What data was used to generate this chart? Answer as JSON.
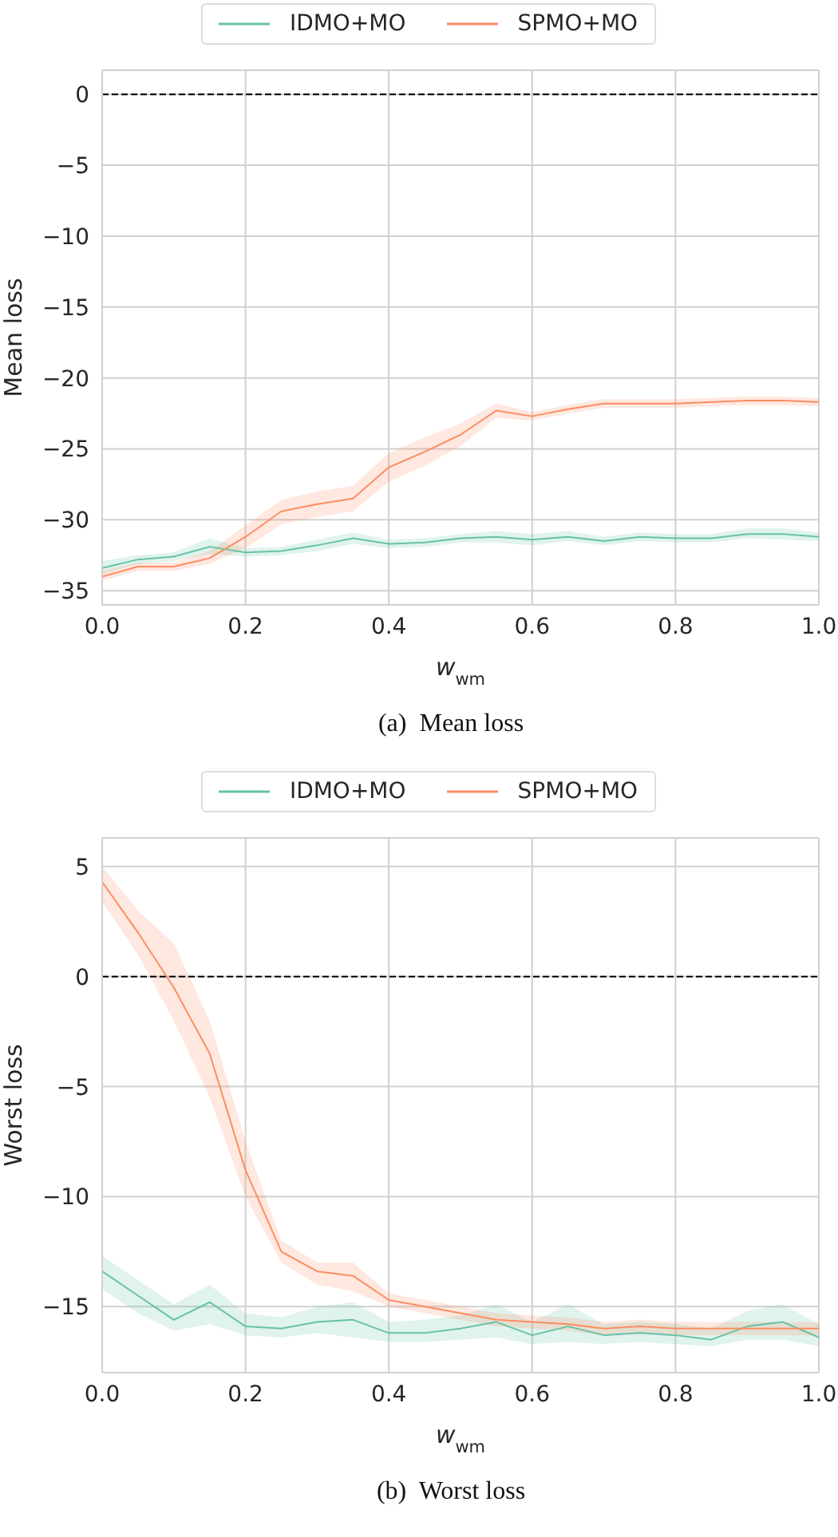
{
  "chart_data": [
    {
      "type": "line",
      "xlabel": "w$_{wm}$",
      "ylabel": "Mean loss",
      "annotations": [
        "(a)  Mean loss"
      ],
      "x": [
        0,
        0.05,
        0.1,
        0.15,
        0.2,
        0.25,
        0.3,
        0.35,
        0.4,
        0.45,
        0.5,
        0.55,
        0.6,
        0.65,
        0.7,
        0.75,
        0.8,
        0.85,
        0.9,
        0.95,
        1.0
      ],
      "series": [
        {
          "name": "IDMO+MO",
          "color": "#66c2a5",
          "values": [
            -33.4,
            -32.8,
            -32.6,
            -31.9,
            -32.3,
            -32.2,
            -31.8,
            -31.3,
            -31.7,
            -31.6,
            -31.3,
            -31.2,
            -31.4,
            -31.2,
            -31.5,
            -31.2,
            -31.3,
            -31.3,
            -31.0,
            -31.0,
            -31.2
          ],
          "lower": [
            -33.8,
            -33.1,
            -32.9,
            -32.4,
            -32.6,
            -32.5,
            -32.2,
            -31.7,
            -32.0,
            -31.9,
            -31.6,
            -31.6,
            -31.8,
            -31.5,
            -31.8,
            -31.5,
            -31.6,
            -31.6,
            -31.3,
            -31.4,
            -31.5
          ],
          "upper": [
            -32.9,
            -32.5,
            -32.3,
            -31.3,
            -32.0,
            -31.9,
            -31.4,
            -30.9,
            -31.4,
            -31.3,
            -31.0,
            -30.8,
            -31.0,
            -30.8,
            -31.2,
            -30.9,
            -31.0,
            -31.0,
            -30.6,
            -30.6,
            -30.9
          ]
        },
        {
          "name": "SPMO+MO",
          "color": "#fc8d62",
          "values": [
            -34.0,
            -33.3,
            -33.3,
            -32.7,
            -31.2,
            -29.4,
            -28.9,
            -28.5,
            -26.3,
            -25.2,
            -24.0,
            -22.3,
            -22.7,
            -22.2,
            -21.8,
            -21.8,
            -21.8,
            -21.7,
            -21.6,
            -21.6,
            -21.7
          ],
          "lower": [
            -34.3,
            -33.6,
            -33.6,
            -33.1,
            -32.0,
            -30.3,
            -29.8,
            -29.4,
            -27.3,
            -26.2,
            -24.8,
            -22.8,
            -23.0,
            -22.5,
            -22.1,
            -22.1,
            -22.1,
            -22.0,
            -21.9,
            -21.9,
            -22.0
          ],
          "upper": [
            -33.6,
            -33.0,
            -33.0,
            -32.2,
            -30.4,
            -28.6,
            -28.0,
            -27.6,
            -25.3,
            -24.2,
            -23.2,
            -21.8,
            -22.4,
            -21.9,
            -21.5,
            -21.5,
            -21.5,
            -21.4,
            -21.3,
            -21.3,
            -21.4
          ]
        }
      ],
      "xlim": [
        0,
        1
      ],
      "xticks": [
        {
          "value": 0,
          "label": "0.0"
        },
        {
          "value": 0.2,
          "label": "0.2"
        },
        {
          "value": 0.4,
          "label": "0.4"
        },
        {
          "value": 0.6,
          "label": "0.6"
        },
        {
          "value": 0.8,
          "label": "0.8"
        },
        {
          "value": 1,
          "label": "1.0"
        }
      ],
      "ylim": [
        -36,
        1.7
      ],
      "yticks": [
        {
          "value": -35,
          "label": "−35"
        },
        {
          "value": -30,
          "label": "−30"
        },
        {
          "value": -25,
          "label": "−25"
        },
        {
          "value": -20,
          "label": "−20"
        },
        {
          "value": -15,
          "label": "−15"
        },
        {
          "value": -10,
          "label": "−10"
        },
        {
          "value": -5,
          "label": "−5"
        },
        {
          "value": 0,
          "label": "0"
        }
      ],
      "grid": true,
      "legend": "top",
      "ref_lines": [
        {
          "axis": "y",
          "value": 0,
          "color": "#000000",
          "line_style": "dashed"
        }
      ]
    },
    {
      "type": "line",
      "xlabel": "w$_{wm}$",
      "ylabel": "Worst loss",
      "annotations": [
        "(b)  Worst loss"
      ],
      "x": [
        0,
        0.05,
        0.1,
        0.15,
        0.2,
        0.25,
        0.3,
        0.35,
        0.4,
        0.45,
        0.5,
        0.55,
        0.6,
        0.65,
        0.7,
        0.75,
        0.8,
        0.85,
        0.9,
        0.95,
        1.0
      ],
      "series": [
        {
          "name": "IDMO+MO",
          "color": "#66c2a5",
          "values": [
            -13.4,
            -14.5,
            -15.6,
            -14.8,
            -15.9,
            -16.0,
            -15.7,
            -15.6,
            -16.2,
            -16.2,
            -16.0,
            -15.7,
            -16.3,
            -15.9,
            -16.3,
            -16.2,
            -16.3,
            -16.5,
            -15.9,
            -15.7,
            -16.4
          ],
          "lower": [
            -14.2,
            -15.3,
            -16.1,
            -15.8,
            -16.3,
            -16.4,
            -16.2,
            -16.4,
            -16.6,
            -16.6,
            -16.5,
            -16.4,
            -16.7,
            -16.6,
            -16.7,
            -16.6,
            -16.7,
            -16.8,
            -16.5,
            -16.5,
            -16.8
          ],
          "upper": [
            -12.7,
            -13.8,
            -14.9,
            -14.0,
            -15.3,
            -15.5,
            -15.0,
            -14.8,
            -15.7,
            -15.6,
            -15.4,
            -14.9,
            -15.7,
            -14.9,
            -15.8,
            -15.7,
            -15.8,
            -16.0,
            -15.2,
            -14.9,
            -15.8
          ]
        },
        {
          "name": "SPMO+MO",
          "color": "#fc8d62",
          "values": [
            4.3,
            2.0,
            -0.5,
            -3.5,
            -8.8,
            -12.5,
            -13.4,
            -13.6,
            -14.7,
            -15.0,
            -15.3,
            -15.6,
            -15.7,
            -15.8,
            -16.0,
            -15.9,
            -16.0,
            -16.0,
            -16.0,
            -16.0,
            -16.0
          ],
          "lower": [
            3.4,
            1.0,
            -2.0,
            -5.5,
            -10.0,
            -13.0,
            -14.0,
            -14.3,
            -15.0,
            -15.3,
            -15.6,
            -15.9,
            -16.0,
            -16.1,
            -16.3,
            -16.2,
            -16.3,
            -16.3,
            -16.3,
            -16.3,
            -16.3
          ],
          "upper": [
            5.0,
            3.0,
            1.5,
            -2.0,
            -7.5,
            -12.0,
            -13.0,
            -13.0,
            -14.4,
            -14.7,
            -15.0,
            -15.3,
            -15.4,
            -15.5,
            -15.7,
            -15.6,
            -15.7,
            -15.7,
            -15.7,
            -15.7,
            -15.7
          ]
        }
      ],
      "xlim": [
        0,
        1
      ],
      "xticks": [
        {
          "value": 0,
          "label": "0.0"
        },
        {
          "value": 0.2,
          "label": "0.2"
        },
        {
          "value": 0.4,
          "label": "0.4"
        },
        {
          "value": 0.6,
          "label": "0.6"
        },
        {
          "value": 0.8,
          "label": "0.8"
        },
        {
          "value": 1,
          "label": "1.0"
        }
      ],
      "ylim": [
        -18,
        6.3
      ],
      "yticks": [
        {
          "value": -15,
          "label": "−15"
        },
        {
          "value": -10,
          "label": "−10"
        },
        {
          "value": -5,
          "label": "−5"
        },
        {
          "value": 0,
          "label": "0"
        },
        5
      ],
      "grid": true,
      "legend": "top",
      "ref_lines": [
        {
          "axis": "y",
          "value": 0,
          "color": "#000000",
          "line_style": "dashed"
        }
      ]
    }
  ]
}
